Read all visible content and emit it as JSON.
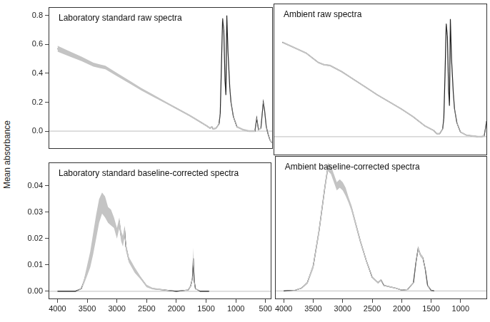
{
  "chart_data": [
    {
      "type": "line",
      "title": "Laboratory standard raw spectra",
      "ylabel": "Mean absorbance",
      "xlim": [
        4150,
        400
      ],
      "ylim": [
        -0.12,
        0.86
      ],
      "yticks": [
        {
          "value": 0,
          "label": "0.0"
        },
        0.2,
        0.4,
        0.6,
        0.8
      ],
      "tick_labels": "y",
      "grid": false,
      "baseline": 0,
      "x": [
        4000,
        3800,
        3600,
        3400,
        3300,
        3200,
        3000,
        2800,
        2600,
        2400,
        2200,
        2000,
        1800,
        1700,
        1600,
        1500,
        1450,
        1420,
        1400,
        1350,
        1300,
        1280,
        1260,
        1240,
        1220,
        1200,
        1185,
        1170,
        1150,
        1120,
        1100,
        1060,
        1000,
        900,
        800,
        700,
        670,
        640,
        600,
        560,
        540,
        510,
        480,
        450,
        420
      ],
      "series": [
        {
          "color": "#1a1a1a",
          "values": [
            0.57,
            0.535,
            0.5,
            0.46,
            0.45,
            0.44,
            0.39,
            0.34,
            0.29,
            0.245,
            0.2,
            0.155,
            0.11,
            0.085,
            0.06,
            0.035,
            0.02,
            0.03,
            0.015,
            0.02,
            0.05,
            0.12,
            0.45,
            0.78,
            0.7,
            0.35,
            0.25,
            0.8,
            0.55,
            0.3,
            0.2,
            0.1,
            0.03,
            0.01,
            0.0,
            0.0,
            0.09,
            0.01,
            0.02,
            0.2,
            0.15,
            0.03,
            -0.02,
            -0.06,
            -0.08
          ],
          "lower": [
            0.55,
            0.517,
            0.484,
            0.446,
            0.437,
            0.428,
            0.379,
            0.33,
            0.281,
            0.237,
            0.194,
            0.149,
            0.104,
            0.079,
            0.054,
            0.029,
            0.014,
            0.024,
            0.009,
            0.014,
            0.044,
            0.114,
            0.444,
            0.774,
            0.694,
            0.344,
            0.244,
            0.794,
            0.544,
            0.294,
            0.194,
            0.094,
            0.024,
            0.004,
            -0.006,
            -0.006,
            0.084,
            0.004,
            0.014,
            0.194,
            0.144,
            0.024,
            -0.026,
            -0.066,
            -0.086
          ],
          "upper": [
            0.59,
            0.553,
            0.516,
            0.474,
            0.463,
            0.452,
            0.401,
            0.35,
            0.299,
            0.253,
            0.206,
            0.161,
            0.116,
            0.091,
            0.066,
            0.041,
            0.026,
            0.036,
            0.021,
            0.026,
            0.056,
            0.126,
            0.456,
            0.786,
            0.706,
            0.356,
            0.256,
            0.806,
            0.556,
            0.306,
            0.206,
            0.106,
            0.036,
            0.016,
            0.006,
            0.006,
            0.096,
            0.016,
            0.026,
            0.206,
            0.156,
            0.036,
            -0.014,
            -0.054,
            -0.074
          ]
        }
      ]
    },
    {
      "type": "line",
      "title": "Ambient raw spectra",
      "xlim": [
        4150,
        550
      ],
      "ylim": [
        -0.12,
        0.86
      ],
      "tick_labels": false,
      "grid": false,
      "baseline": 0,
      "x": [
        4000,
        3800,
        3600,
        3400,
        3300,
        3200,
        3000,
        2800,
        2600,
        2400,
        2200,
        2000,
        1800,
        1700,
        1600,
        1500,
        1450,
        1400,
        1350,
        1300,
        1280,
        1260,
        1240,
        1220,
        1200,
        1185,
        1170,
        1150,
        1120,
        1100,
        1060,
        1000,
        900,
        800,
        700,
        650,
        600,
        580,
        560
      ],
      "series": [
        {
          "color": "#1a1a1a",
          "values": [
            0.61,
            0.575,
            0.54,
            0.48,
            0.465,
            0.46,
            0.42,
            0.37,
            0.32,
            0.27,
            0.225,
            0.18,
            0.13,
            0.1,
            0.07,
            0.05,
            0.04,
            0.02,
            0.02,
            0.05,
            0.12,
            0.4,
            0.73,
            0.65,
            0.3,
            0.2,
            0.76,
            0.5,
            0.28,
            0.18,
            0.09,
            0.03,
            0.01,
            0.005,
            0.0,
            0.0,
            0.005,
            0.05,
            0.1
          ],
          "lower": [
            0.605,
            0.57,
            0.535,
            0.475,
            0.46,
            0.455,
            0.415,
            0.365,
            0.315,
            0.265,
            0.22,
            0.175,
            0.125,
            0.095,
            0.065,
            0.045,
            0.035,
            0.015,
            0.015,
            0.045,
            0.115,
            0.395,
            0.725,
            0.645,
            0.295,
            0.195,
            0.755,
            0.495,
            0.275,
            0.175,
            0.085,
            0.025,
            0.005,
            0.0,
            -0.005,
            -0.005,
            0.0,
            0.045,
            0.095
          ],
          "upper": [
            0.615,
            0.58,
            0.545,
            0.485,
            0.47,
            0.465,
            0.425,
            0.375,
            0.325,
            0.275,
            0.23,
            0.185,
            0.135,
            0.105,
            0.075,
            0.055,
            0.045,
            0.025,
            0.025,
            0.055,
            0.125,
            0.405,
            0.735,
            0.655,
            0.305,
            0.205,
            0.765,
            0.505,
            0.285,
            0.185,
            0.095,
            0.035,
            0.015,
            0.01,
            0.005,
            0.005,
            0.01,
            0.055,
            0.105
          ]
        }
      ]
    },
    {
      "type": "line",
      "title": "Laboratory standard baseline-corrected spectra",
      "xlim": [
        4150,
        400
      ],
      "ylim": [
        -0.003,
        0.049
      ],
      "xticks": [
        4000,
        3500,
        3000,
        2500,
        2000,
        1500,
        1000,
        500
      ],
      "yticks": [
        {
          "value": 0,
          "label": "0.00"
        },
        0.01,
        0.02,
        0.03,
        0.04
      ],
      "grid": false,
      "baseline": 0,
      "x": [
        4000,
        3800,
        3700,
        3600,
        3550,
        3500,
        3450,
        3400,
        3350,
        3300,
        3250,
        3200,
        3150,
        3100,
        3050,
        3000,
        2960,
        2930,
        2900,
        2870,
        2850,
        2800,
        2700,
        2600,
        2500,
        2400,
        2200,
        2000,
        1800,
        1760,
        1730,
        1715,
        1700,
        1680,
        1600,
        1500,
        1450
      ],
      "series": [
        {
          "color": "#1a1a1a",
          "values": [
            0,
            0,
            0,
            0.001,
            0.004,
            0.008,
            0.012,
            0.018,
            0.025,
            0.031,
            0.0335,
            0.032,
            0.029,
            0.028,
            0.026,
            0.022,
            0.026,
            0.021,
            0.019,
            0.023,
            0.017,
            0.012,
            0.008,
            0.005,
            0.002,
            0.001,
            0.0005,
            0,
            0.0005,
            0.002,
            0.005,
            0.0125,
            0.004,
            0.001,
            0,
            0,
            0
          ],
          "lower": [
            0,
            0,
            0,
            0.0008,
            0.003,
            0.006,
            0.009,
            0.014,
            0.02,
            0.026,
            0.0295,
            0.028,
            0.026,
            0.025,
            0.024,
            0.02,
            0.024,
            0.019,
            0.017,
            0.021,
            0.0155,
            0.011,
            0.007,
            0.0045,
            0.0015,
            0.0007,
            0.0003,
            0,
            0.0003,
            0.0015,
            0.004,
            0.01,
            0.003,
            0.0007,
            0,
            0,
            0
          ],
          "upper": [
            0,
            0,
            0,
            0.0012,
            0.005,
            0.01,
            0.015,
            0.022,
            0.029,
            0.035,
            0.0375,
            0.036,
            0.032,
            0.031,
            0.028,
            0.024,
            0.028,
            0.023,
            0.021,
            0.025,
            0.0185,
            0.013,
            0.009,
            0.0055,
            0.0025,
            0.0013,
            0.0007,
            0,
            0.0007,
            0.0025,
            0.006,
            0.0165,
            0.005,
            0.0013,
            0,
            0,
            0
          ]
        }
      ]
    },
    {
      "type": "line",
      "title": "Ambient baseline-corrected spectra",
      "xlim": [
        4150,
        550
      ],
      "ylim": [
        -0.003,
        0.049
      ],
      "xticks": [
        4000,
        3500,
        3000,
        2500,
        2000,
        1500,
        1000
      ],
      "tick_labels": "x",
      "grid": false,
      "baseline": 0,
      "x": [
        4000,
        3800,
        3700,
        3600,
        3500,
        3400,
        3300,
        3250,
        3200,
        3150,
        3100,
        3050,
        3000,
        2950,
        2900,
        2850,
        2800,
        2700,
        2600,
        2500,
        2400,
        2350,
        2300,
        2200,
        2100,
        2000,
        1900,
        1800,
        1760,
        1720,
        1680,
        1640,
        1600,
        1560,
        1500,
        1450
      ],
      "series": [
        {
          "color": "#1a1a1a",
          "values": [
            0,
            0.0003,
            0.001,
            0.003,
            0.009,
            0.022,
            0.038,
            0.045,
            0.044,
            0.041,
            0.038,
            0.039,
            0.038,
            0.036,
            0.033,
            0.03,
            0.026,
            0.018,
            0.011,
            0.005,
            0.003,
            0.004,
            0.002,
            0.0015,
            0.001,
            0.0003,
            0.0005,
            0.003,
            0.01,
            0.0155,
            0.013,
            0.012,
            0.008,
            0.002,
            0.0002,
            0
          ],
          "lower": [
            0,
            0.0002,
            0.0008,
            0.0025,
            0.008,
            0.0205,
            0.0365,
            0.0435,
            0.0425,
            0.0395,
            0.0365,
            0.0375,
            0.0365,
            0.0345,
            0.032,
            0.029,
            0.025,
            0.0172,
            0.0104,
            0.0046,
            0.0027,
            0.0037,
            0.0018,
            0.0013,
            0.0008,
            0.0002,
            0.0003,
            0.0027,
            0.0094,
            0.0148,
            0.0124,
            0.0114,
            0.0075,
            0.0017,
            0.0001,
            0
          ],
          "upper": [
            0,
            0.0004,
            0.0012,
            0.0035,
            0.01,
            0.0235,
            0.0395,
            0.0465,
            0.0455,
            0.0425,
            0.0395,
            0.0405,
            0.0395,
            0.0375,
            0.034,
            0.031,
            0.027,
            0.0188,
            0.0116,
            0.0054,
            0.0033,
            0.0043,
            0.0022,
            0.0017,
            0.0012,
            0.0004,
            0.0007,
            0.0033,
            0.0106,
            0.0162,
            0.0136,
            0.0126,
            0.0085,
            0.0023,
            0.0003,
            0
          ]
        }
      ]
    }
  ]
}
